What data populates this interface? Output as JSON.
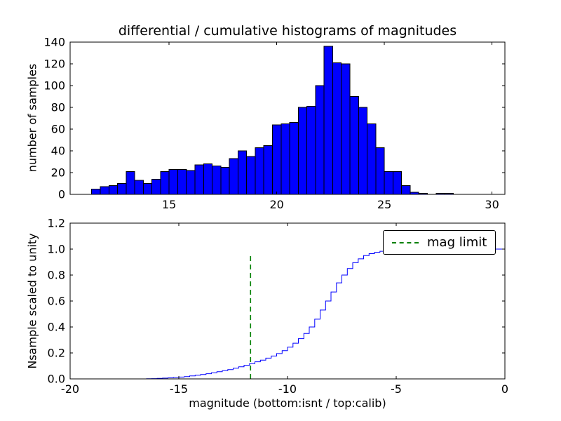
{
  "figure": {
    "background": "#ffffff",
    "accent_blue": "#0000ff",
    "accent_green": "#008000"
  },
  "chart_data": [
    {
      "type": "bar",
      "title": "differential / cumulative histograms of magnitudes",
      "ylabel": "number of samples",
      "xlabel": "",
      "xlim": [
        10.4,
        30.6
      ],
      "ylim": [
        0,
        140
      ],
      "xticks": [
        "15",
        "20",
        "25",
        "30"
      ],
      "yticks": [
        "0",
        "20",
        "40",
        "60",
        "80",
        "100",
        "120",
        "140"
      ],
      "grid": false,
      "bar_color": "#0000ff",
      "bar_edge_color": "#000000",
      "bin_width": 0.4,
      "bin_left_edges": [
        11.4,
        11.8,
        12.2,
        12.6,
        13.0,
        13.4,
        13.8,
        14.2,
        14.6,
        15.0,
        15.4,
        15.8,
        16.2,
        16.6,
        17.0,
        17.4,
        17.8,
        18.2,
        18.6,
        19.0,
        19.4,
        19.8,
        20.2,
        20.6,
        21.0,
        21.4,
        21.8,
        22.2,
        22.6,
        23.0,
        23.4,
        23.8,
        24.2,
        24.6,
        25.0,
        25.4,
        25.8,
        26.2,
        26.6,
        27.0,
        27.4,
        27.8
      ],
      "values": [
        5,
        7,
        8,
        10,
        21,
        13,
        10,
        14,
        21,
        23,
        23,
        22,
        27,
        28,
        26,
        25,
        33,
        40,
        35,
        43,
        45,
        64,
        65,
        66,
        80,
        81,
        100,
        136,
        121,
        120,
        90,
        80,
        65,
        43,
        21,
        21,
        8,
        2,
        1,
        0,
        1,
        1
      ]
    },
    {
      "type": "line",
      "title": "",
      "ylabel": "Nsample scaled to unity",
      "xlabel": "magnitude (bottom:isnt / top:calib)",
      "xlim": [
        -20,
        0
      ],
      "ylim": [
        0,
        1.2
      ],
      "xticks": [
        "-20",
        "-15",
        "-10",
        "-5",
        "0"
      ],
      "yticks": [
        "0.0",
        "0.2",
        "0.4",
        "0.6",
        "0.8",
        "1.0",
        "1.2"
      ],
      "grid": false,
      "step": true,
      "line_color": "#0000ff",
      "x": [
        -16.5,
        -16.25,
        -16.0,
        -15.75,
        -15.5,
        -15.25,
        -15.0,
        -14.75,
        -14.5,
        -14.25,
        -14.0,
        -13.75,
        -13.5,
        -13.25,
        -13.0,
        -12.75,
        -12.5,
        -12.25,
        -12.0,
        -11.75,
        -11.5,
        -11.25,
        -11.0,
        -10.75,
        -10.5,
        -10.25,
        -10.0,
        -9.75,
        -9.5,
        -9.25,
        -9.0,
        -8.75,
        -8.5,
        -8.25,
        -8.0,
        -7.75,
        -7.5,
        -7.25,
        -7.0,
        -6.75,
        -6.5,
        -6.25,
        -6.0,
        -5.75,
        -5.5,
        -5.25,
        -5.0,
        0.0
      ],
      "y": [
        0.001,
        0.002,
        0.004,
        0.006,
        0.008,
        0.011,
        0.014,
        0.018,
        0.023,
        0.028,
        0.034,
        0.04,
        0.047,
        0.055,
        0.063,
        0.072,
        0.082,
        0.093,
        0.105,
        0.118,
        0.132,
        0.145,
        0.16,
        0.176,
        0.195,
        0.218,
        0.245,
        0.275,
        0.31,
        0.35,
        0.4,
        0.46,
        0.53,
        0.6,
        0.67,
        0.74,
        0.8,
        0.85,
        0.895,
        0.925,
        0.95,
        0.965,
        0.975,
        0.983,
        0.99,
        0.995,
        1.0,
        1.0
      ],
      "vline": {
        "x": -11.7,
        "y_top": 0.96,
        "color": "#008000",
        "style": "dashed",
        "label": "mag limit"
      },
      "legend": {
        "label": "mag limit",
        "position": "upper right"
      }
    }
  ]
}
